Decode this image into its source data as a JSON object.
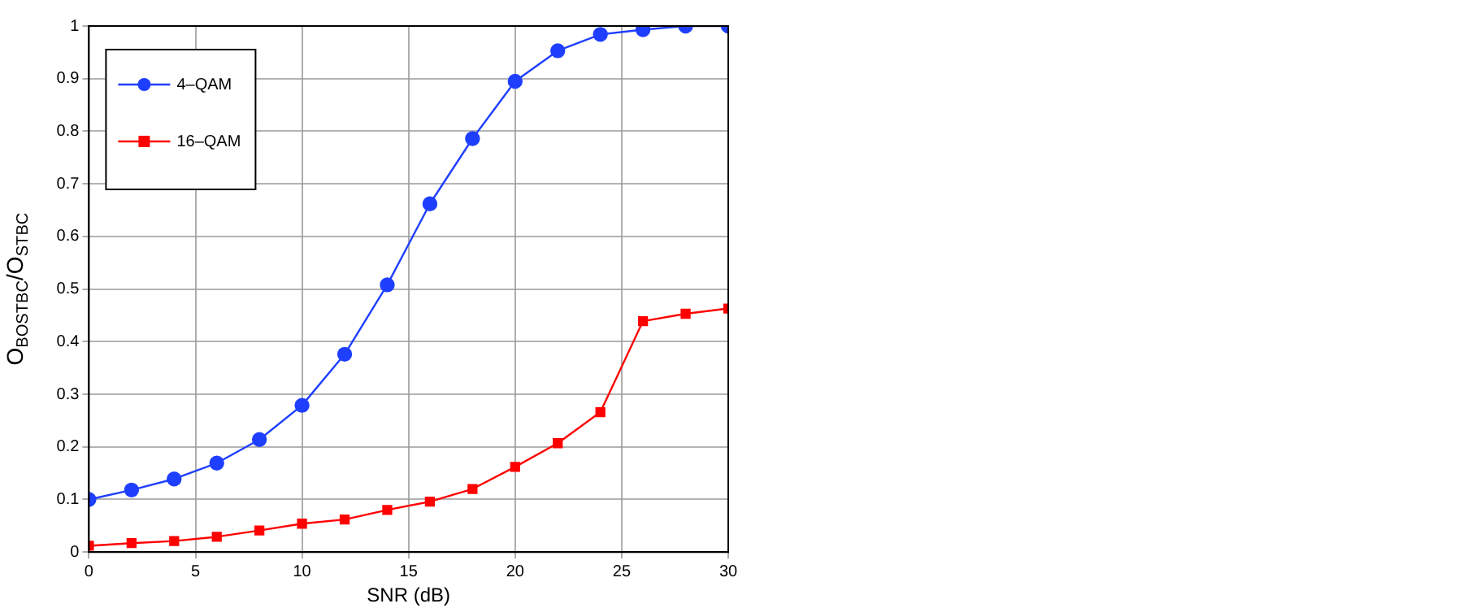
{
  "chart_data": {
    "type": "line",
    "xlabel": "SNR (dB)",
    "ylabel": "O$_{BOSTBC}$/O$_{STBC}$",
    "x": [
      0,
      2,
      4,
      6,
      8,
      10,
      12,
      14,
      16,
      18,
      20,
      22,
      24,
      26,
      28,
      30
    ],
    "series": [
      {
        "name": "4–QAM",
        "color": "#1f3fff",
        "marker": "circle",
        "values": [
          0.1,
          0.118,
          0.139,
          0.169,
          0.214,
          0.279,
          0.376,
          0.508,
          0.662,
          0.786,
          0.895,
          0.953,
          0.984,
          0.993,
          1.0,
          1.0
        ]
      },
      {
        "name": "16–QAM",
        "color": "#ff0000",
        "marker": "square",
        "values": [
          0.012,
          0.017,
          0.021,
          0.029,
          0.041,
          0.054,
          0.062,
          0.08,
          0.096,
          0.12,
          0.162,
          0.207,
          0.266,
          0.439,
          0.453,
          0.463
        ]
      }
    ],
    "xlim": [
      0,
      30
    ],
    "xticks": [
      0,
      5,
      10,
      15,
      20,
      25,
      30
    ],
    "ylim": [
      0,
      1
    ],
    "yticks": [
      0,
      0.1,
      0.2,
      0.3,
      0.4,
      0.5,
      0.6,
      0.7,
      0.8,
      0.9,
      1
    ],
    "grid": true,
    "legend": "top left",
    "line_style": "solid"
  }
}
